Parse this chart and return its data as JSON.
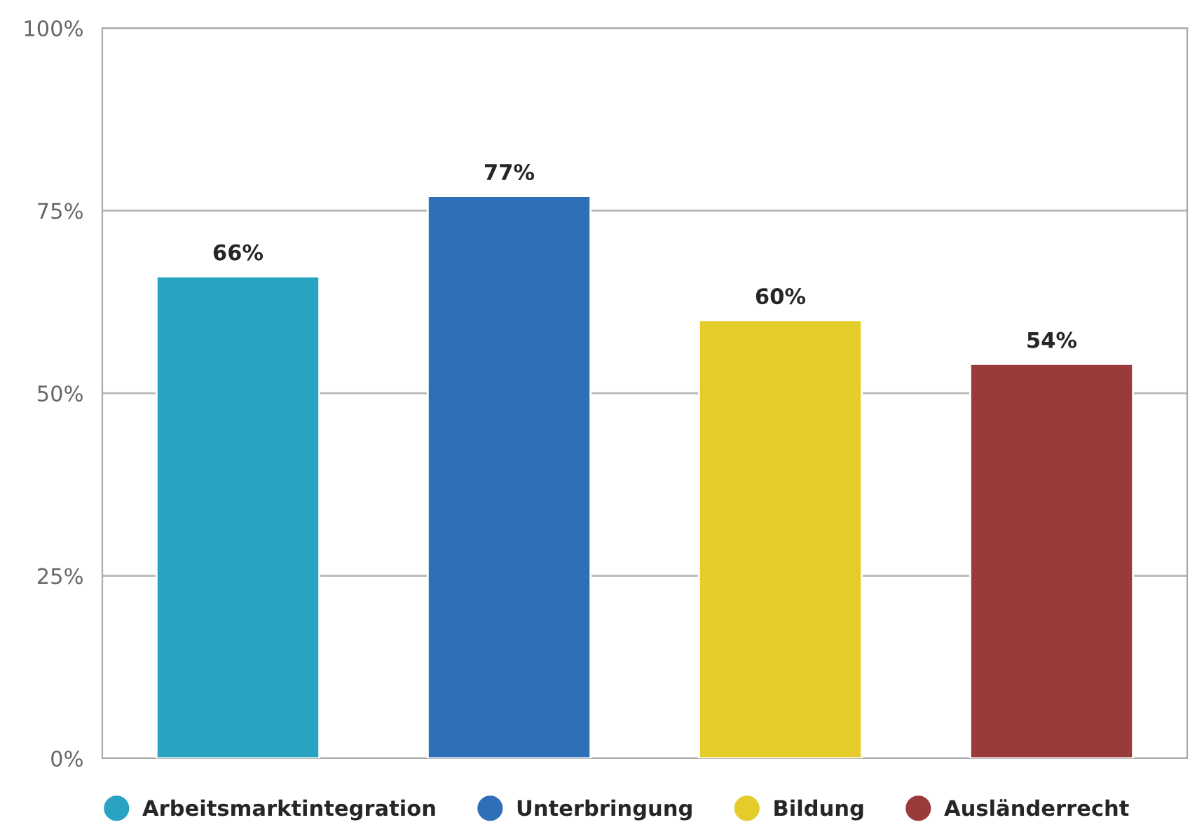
{
  "chart_data": {
    "type": "bar",
    "categories": [
      null,
      null,
      null,
      null
    ],
    "series": [
      {
        "name": "Arbeitsmarktintegration",
        "color": "#29a3c1",
        "values": [
          66,
          null,
          null,
          null
        ],
        "value_labels": [
          "66%",
          null,
          null,
          null
        ]
      },
      {
        "name": "Unterbringung",
        "color": "#2e70b7",
        "values": [
          null,
          77,
          null,
          null
        ],
        "value_labels": [
          null,
          "77%",
          null,
          null
        ]
      },
      {
        "name": "Bildung",
        "color": "#e4cd2b",
        "values": [
          null,
          null,
          60,
          null
        ],
        "value_labels": [
          null,
          null,
          "60%",
          null
        ]
      },
      {
        "name": "Ausländerrecht",
        "color": "#993b3a",
        "values": [
          null,
          null,
          null,
          54
        ],
        "value_labels": [
          null,
          null,
          null,
          "54%"
        ]
      }
    ],
    "ylim": [
      0,
      100
    ],
    "yticks": [
      {
        "value": 0,
        "label": "0%"
      },
      {
        "value": 25,
        "label": "25%"
      },
      {
        "value": 50,
        "label": "50%"
      },
      {
        "value": 75,
        "label": "75%"
      },
      {
        "value": 100,
        "label": "100%"
      }
    ],
    "grid": "y",
    "legend": "bottom",
    "marker": "circle",
    "stacked": true,
    "tick_labels": "y"
  }
}
